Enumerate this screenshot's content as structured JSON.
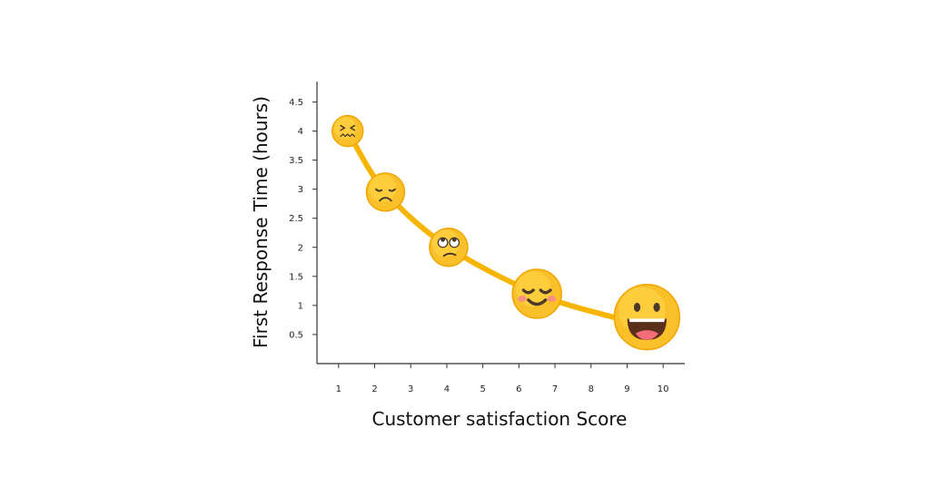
{
  "chart_data": {
    "type": "line",
    "xlabel": "Customer satisfaction Score",
    "ylabel": "First Response Time (hours)",
    "x_ticks": [
      "1",
      "2",
      "3",
      "4",
      "5",
      "6",
      "7",
      "8",
      "9",
      "10"
    ],
    "y_ticks": [
      "0.5",
      "1",
      "1.5",
      "2",
      "2.5",
      "3",
      "3.5",
      "4",
      "4.5"
    ],
    "xlim": [
      0.4,
      10.6
    ],
    "ylim": [
      0,
      4.85
    ],
    "grid": false,
    "curve": {
      "color": "#F7B500",
      "points": [
        [
          1.25,
          4.0
        ],
        [
          2.3,
          2.95
        ],
        [
          4.05,
          2.0
        ],
        [
          6.5,
          1.2
        ],
        [
          8.6,
          0.8
        ]
      ]
    },
    "markers": [
      {
        "icon": "confounded-face-icon",
        "x": 1.25,
        "y": 4.0,
        "size": "small"
      },
      {
        "icon": "sad-face-icon",
        "x": 2.3,
        "y": 2.95,
        "size": "medium"
      },
      {
        "icon": "eye-roll-face-icon",
        "x": 4.05,
        "y": 2.0,
        "size": "medium"
      },
      {
        "icon": "content-blushing-face-icon",
        "x": 6.5,
        "y": 1.2,
        "size": "large"
      },
      {
        "icon": "grinning-face-icon",
        "x": 9.55,
        "y": 0.8,
        "size": "xlarge"
      }
    ]
  }
}
